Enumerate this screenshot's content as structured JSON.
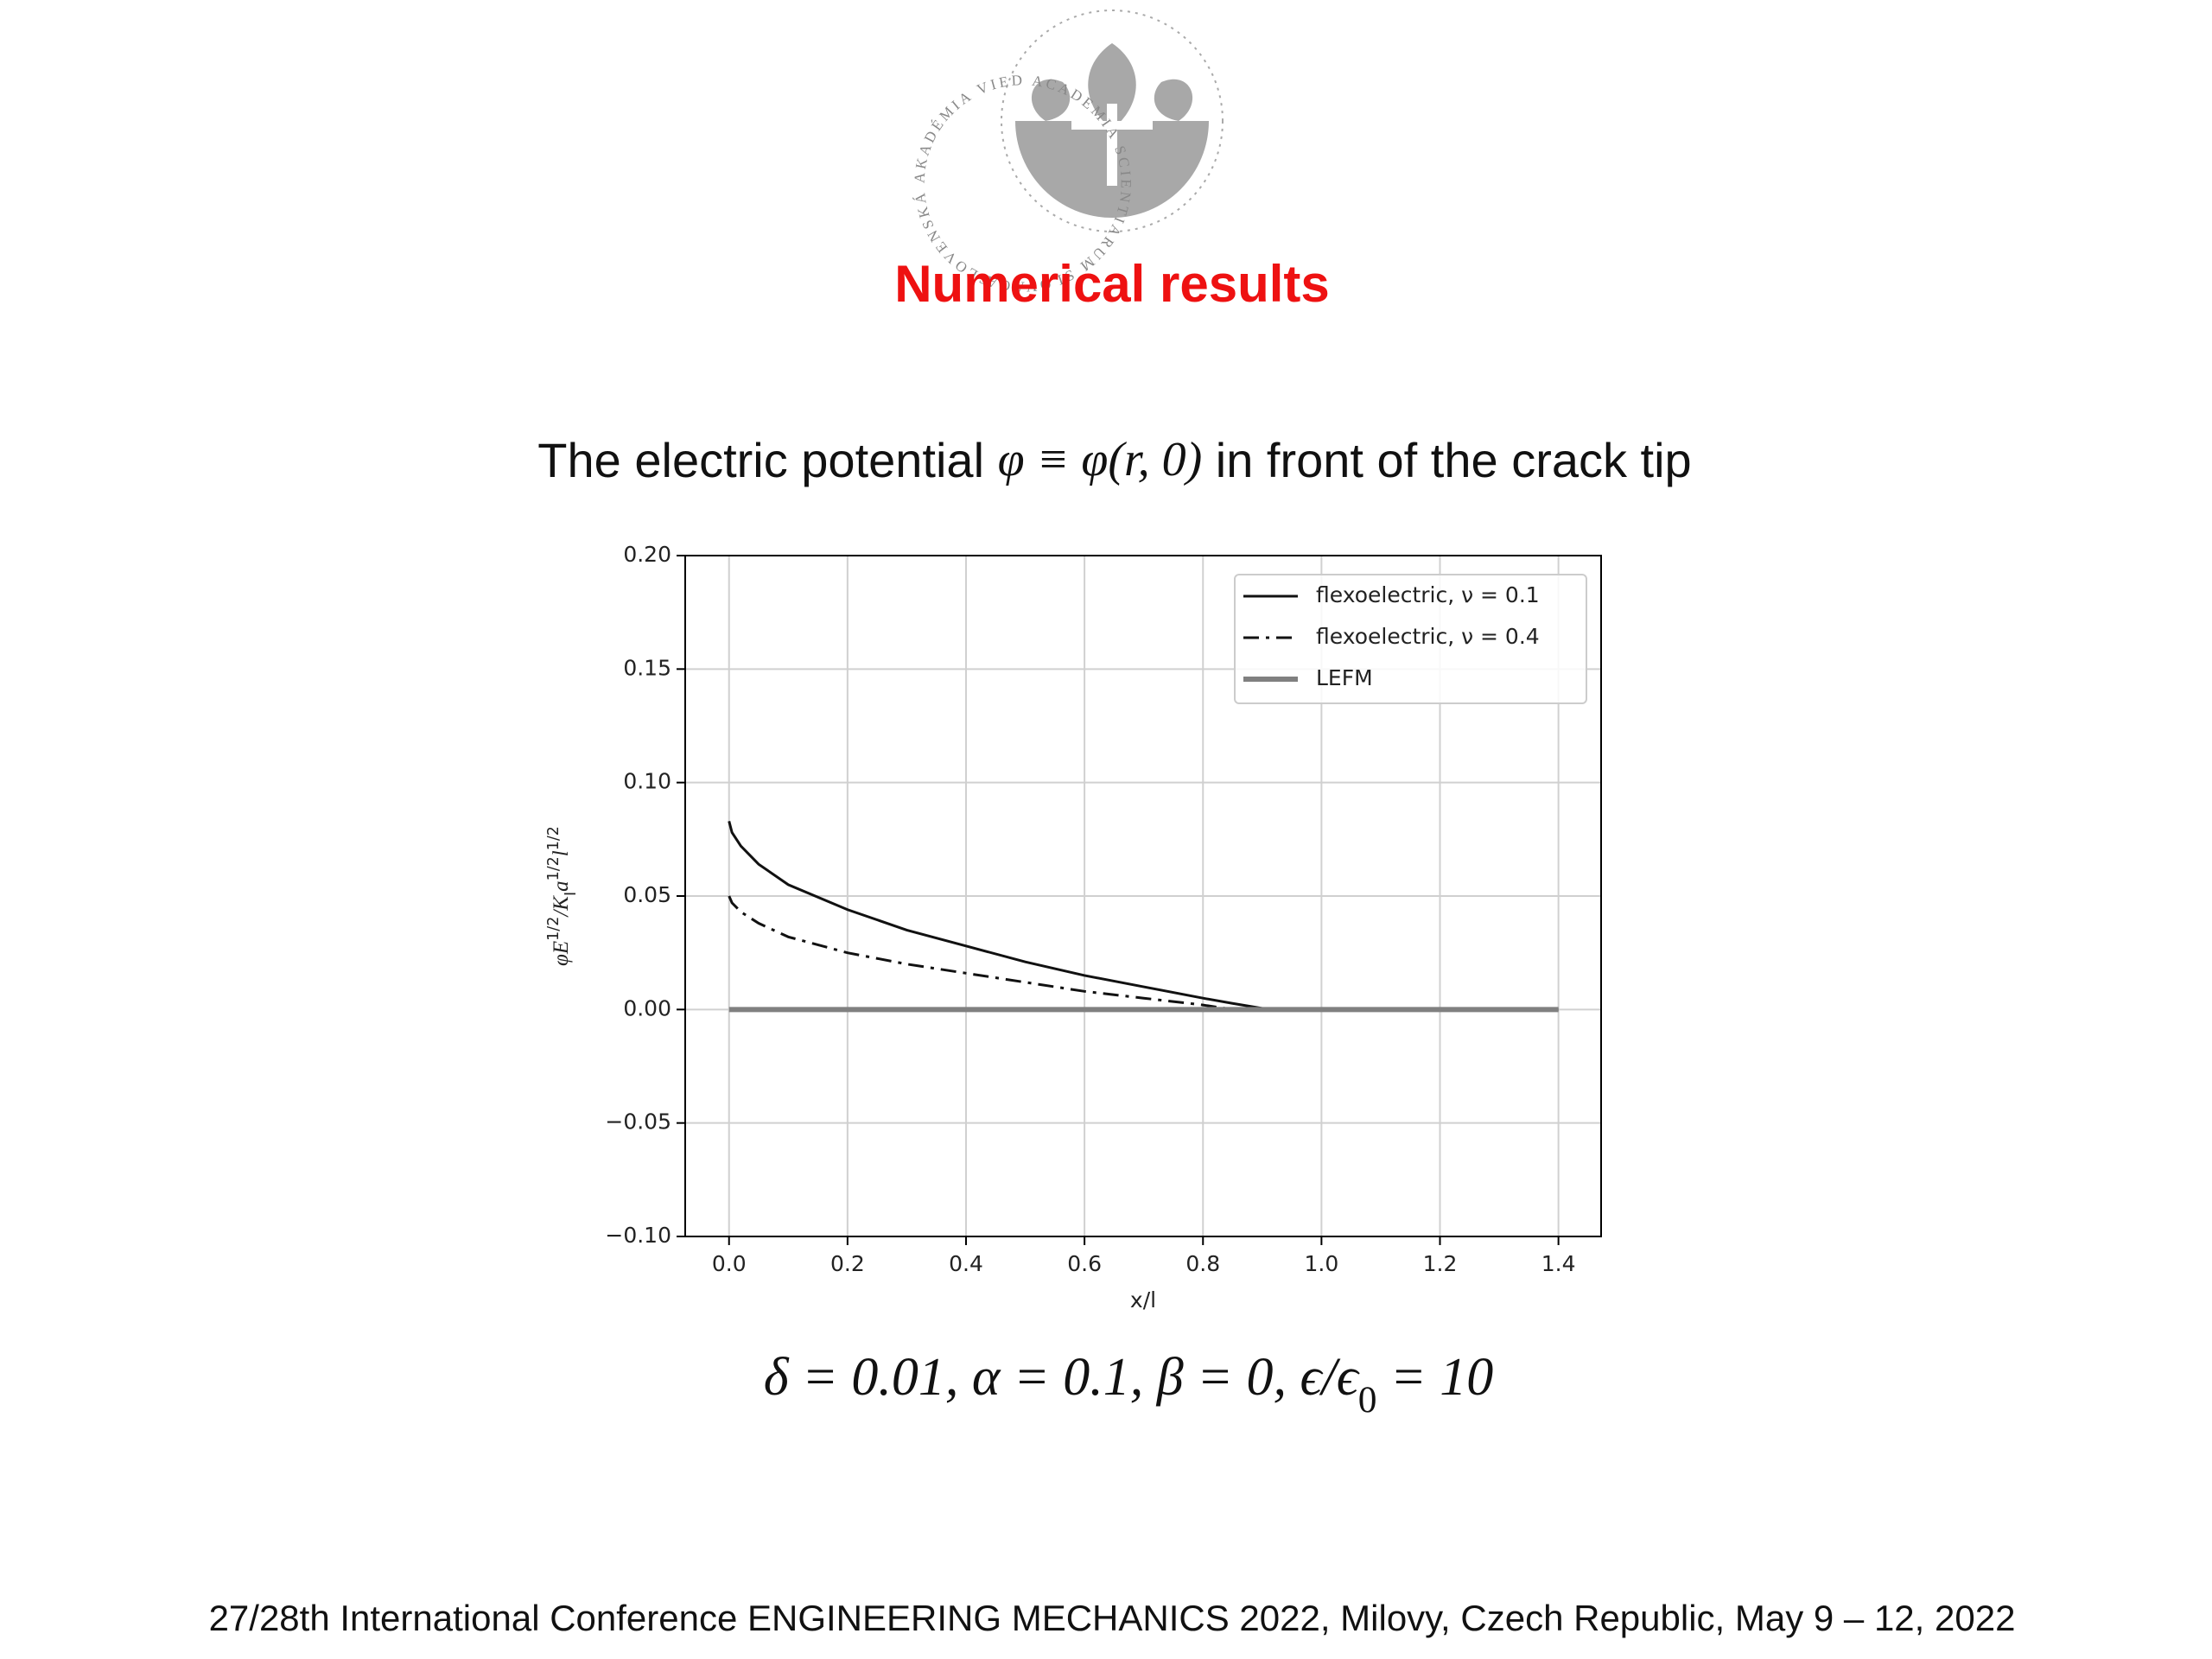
{
  "logo": {
    "text": "SLOVENSKÁ AKADÉMIA VIED ACADEMIA SCIENTIARUM SLOVACA"
  },
  "slide": {
    "heading": "Numerical results",
    "title": [
      {
        "text": "The electric potential ",
        "style": "normal"
      },
      {
        "text": "φ ≡ φ(r, 0)",
        "style": "math"
      },
      {
        "text": " in front of the crack tip",
        "style": "normal"
      }
    ],
    "parameters": [
      {
        "text": "δ = 0.01, α = 0.1, β = 0, ϵ/ϵ",
        "style": "math"
      },
      {
        "text": "0",
        "style": "sub"
      },
      {
        "text": " = 10",
        "style": "math"
      }
    ],
    "footer": "27/28th International Conference ENGINEERING MECHANICS 2022, Milovy, Czech Republic, May 9 – 12, 2022"
  },
  "chart_data": {
    "type": "line",
    "xlabel": "x/l",
    "ylabel": [
      {
        "text": "φE",
        "style": "math"
      },
      {
        "text": "1/2",
        "style": "super"
      },
      {
        "text": "/K",
        "style": "math"
      },
      {
        "text": "I",
        "style": "sub"
      },
      {
        "text": "a",
        "style": "math"
      },
      {
        "text": "1/2",
        "style": "super"
      },
      {
        "text": "l",
        "style": "math"
      },
      {
        "text": "1/2",
        "style": "super"
      }
    ],
    "x": [
      0,
      0.005,
      0.02,
      0.05,
      0.1,
      0.2,
      0.3,
      0.4,
      0.5,
      0.6,
      0.7,
      0.8,
      0.85,
      0.9,
      0.91,
      1.0,
      1.2,
      1.4
    ],
    "series": [
      {
        "name": "flexoelectric, ν = 0.1",
        "color": "#111111",
        "style": "solid",
        "width": 3,
        "values": [
          0.083,
          0.078,
          0.072,
          0.064,
          0.055,
          0.044,
          0.035,
          0.028,
          0.021,
          0.015,
          0.01,
          0.005,
          0.0027,
          0.0005,
          0,
          0,
          0,
          0
        ]
      },
      {
        "name": "flexoelectric, ν = 0.4",
        "color": "#111111",
        "style": "dashdot",
        "width": 3,
        "values": [
          0.05,
          0.047,
          0.043,
          0.038,
          0.032,
          0.025,
          0.02,
          0.016,
          0.012,
          0.008,
          0.005,
          0.002,
          0,
          0,
          0,
          0,
          0,
          0
        ]
      },
      {
        "name": "LEFM",
        "color": "#808080",
        "style": "solid",
        "width": 6,
        "values": [
          0,
          0,
          0,
          0,
          0,
          0,
          0,
          0,
          0,
          0,
          0,
          0,
          0,
          0,
          0,
          0,
          0,
          0
        ]
      }
    ],
    "xlim": [
      -0.074,
      1.472
    ],
    "ylim": [
      -0.1,
      0.2
    ],
    "xticks": [
      {
        "value": 0,
        "label": "0.0"
      },
      {
        "value": 0.2,
        "label": "0.2"
      },
      {
        "value": 0.4,
        "label": "0.4"
      },
      {
        "value": 0.6,
        "label": "0.6"
      },
      {
        "value": 0.8,
        "label": "0.8"
      },
      {
        "value": 1.0,
        "label": "1.0"
      },
      {
        "value": 1.2,
        "label": "1.2"
      },
      {
        "value": 1.4,
        "label": "1.4"
      }
    ],
    "yticks": [
      {
        "value": -0.1,
        "label": "−0.10"
      },
      {
        "value": -0.05,
        "label": "−0.05"
      },
      {
        "value": 0,
        "label": "0.00"
      },
      {
        "value": 0.05,
        "label": "0.05"
      },
      {
        "value": 0.1,
        "label": "0.10"
      },
      {
        "value": 0.15,
        "label": "0.15"
      },
      {
        "value": 0.2,
        "label": "0.20"
      }
    ],
    "grid": true,
    "legend": "upper right"
  }
}
